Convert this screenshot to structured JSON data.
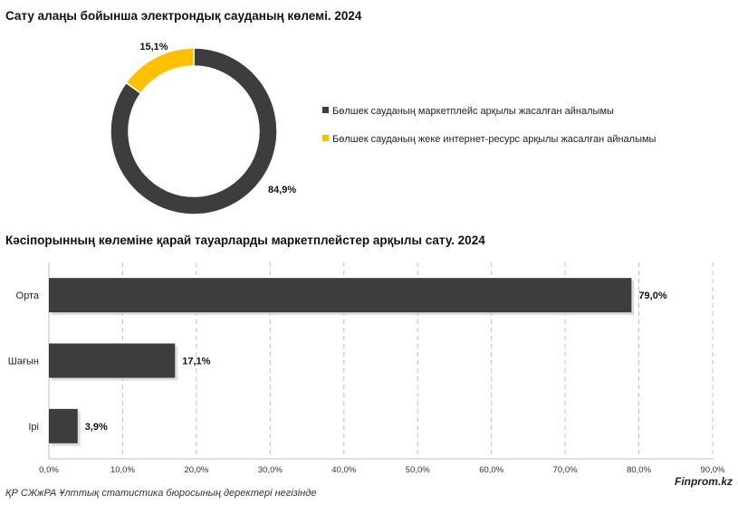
{
  "chart_data": [
    {
      "type": "pie",
      "title": "Сату алаңы бойынша электрондық сауданың көлемі. 2024",
      "categories": [
        "Бөлшек сауданың маркетплейс арқылы жасалған айналымы",
        "Бөлшек сауданың жеке интернет-ресурс арқылы жасалған айналымы"
      ],
      "values": [
        84.9,
        15.1
      ],
      "labels": [
        "84,9%",
        "15,1%"
      ],
      "colors": [
        "#3d3d3d",
        "#ffc000"
      ],
      "legend": "right"
    },
    {
      "type": "bar",
      "orientation": "horizontal",
      "title": "Кәсіпорынның көлеміне қарай тауарларды маркетплейстер арқылы сату. 2024",
      "categories": [
        "Орта",
        "Шағын",
        "Ірі"
      ],
      "values": [
        79.0,
        17.1,
        3.9
      ],
      "labels": [
        "79,0%",
        "17,1%",
        "3,9%"
      ],
      "xlim": [
        0,
        90
      ],
      "ticks": [
        "0,0%",
        "10,0%",
        "20,0%",
        "30,0%",
        "40,0%",
        "50,0%",
        "60,0%",
        "70,0%",
        "80,0%",
        "90,0%"
      ],
      "grid": true,
      "color": "#3d3d3d"
    }
  ],
  "footer": {
    "source": "ҚР СЖжРА Ұлттық статистика бюросының деректері негізінде",
    "brand": "Finprom.kz"
  }
}
